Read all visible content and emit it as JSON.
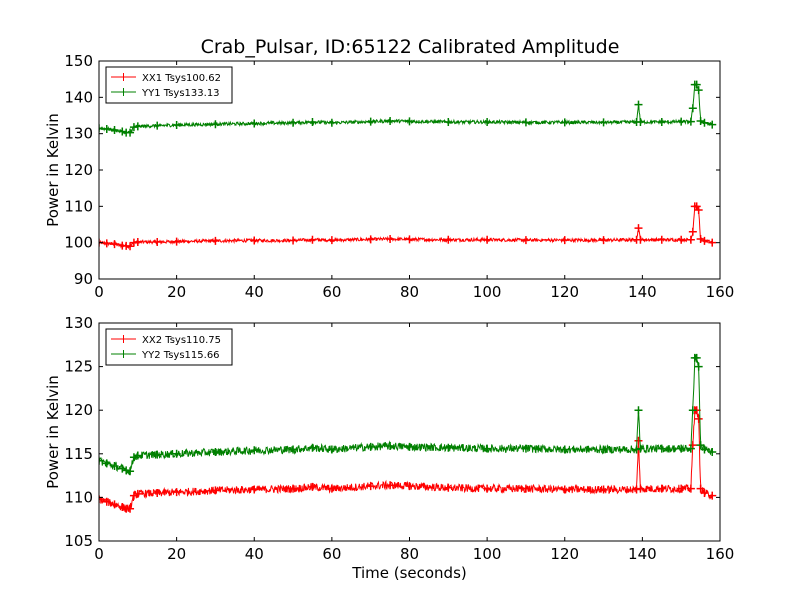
{
  "figure_title": "Crab_Pulsar, ID:65122 Calibrated Amplitude",
  "chart_data": [
    {
      "type": "line",
      "title": "Crab_Pulsar, ID:65122 Calibrated Amplitude",
      "xlabel": "",
      "ylabel": "Power in Kelvin",
      "xlim": [
        0,
        160
      ],
      "ylim": [
        90,
        150
      ],
      "xticks": [
        0,
        20,
        40,
        60,
        80,
        100,
        120,
        140,
        160
      ],
      "yticks": [
        90,
        100,
        110,
        120,
        130,
        140,
        150
      ],
      "grid": false,
      "legend_position": "top-left",
      "marker": "plus",
      "series": [
        {
          "name": "XX1 Tsys100.62",
          "color": "#ff0000",
          "x": [
            0,
            2,
            4,
            6,
            7,
            8,
            9,
            10,
            15,
            20,
            30,
            40,
            50,
            55,
            60,
            70,
            75,
            80,
            90,
            100,
            110,
            120,
            130,
            138.5,
            139,
            139.5,
            145,
            150,
            152.5,
            153,
            153.5,
            154,
            154.5,
            155,
            156,
            158
          ],
          "y": [
            100,
            99.8,
            99.6,
            99.2,
            99.1,
            99,
            100,
            100.2,
            100.2,
            100.3,
            100.5,
            100.6,
            100.6,
            100.8,
            100.7,
            100.9,
            101,
            100.9,
            100.8,
            100.8,
            100.7,
            100.7,
            100.7,
            100.8,
            104,
            100.8,
            100.8,
            100.8,
            100.8,
            103,
            110,
            110,
            109,
            101,
            100.5,
            100
          ]
        },
        {
          "name": "YY1 Tsys133.13",
          "color": "#008000",
          "x": [
            0,
            2,
            4,
            6,
            7,
            8,
            9,
            10,
            15,
            20,
            30,
            40,
            50,
            55,
            60,
            70,
            75,
            80,
            90,
            100,
            110,
            120,
            130,
            138.5,
            139,
            139.5,
            145,
            150,
            152.5,
            153,
            153.5,
            154,
            154.5,
            155,
            156,
            158
          ],
          "y": [
            131.5,
            131.3,
            131,
            130.6,
            130.3,
            130.3,
            131.8,
            132,
            132.2,
            132.4,
            132.6,
            132.8,
            133,
            133.2,
            133,
            133.3,
            133.5,
            133.4,
            133.2,
            133.2,
            133.1,
            133.1,
            133.1,
            133.2,
            138,
            133.2,
            133.2,
            133.3,
            133.3,
            137,
            143.5,
            143.5,
            142,
            133.5,
            133,
            132.5
          ]
        }
      ]
    },
    {
      "type": "line",
      "title": "",
      "xlabel": "Time (seconds)",
      "ylabel": "Power in Kelvin",
      "xlim": [
        0,
        160
      ],
      "ylim": [
        105,
        130
      ],
      "xticks": [
        0,
        20,
        40,
        60,
        80,
        100,
        120,
        140,
        160
      ],
      "yticks": [
        105,
        110,
        115,
        120,
        125,
        130
      ],
      "grid": false,
      "legend_position": "top-left",
      "marker": "plus",
      "series": [
        {
          "name": "XX2 Tsys110.75",
          "color": "#ff0000",
          "x": [
            0,
            2,
            4,
            6,
            7,
            8,
            9,
            10,
            15,
            20,
            30,
            40,
            50,
            55,
            60,
            70,
            75,
            80,
            90,
            100,
            110,
            120,
            130,
            138.5,
            139,
            139.5,
            145,
            150,
            152.5,
            153,
            153.5,
            154,
            154.5,
            155,
            156,
            158
          ],
          "y": [
            109.8,
            109.5,
            109.2,
            108.9,
            108.7,
            108.7,
            110.2,
            110.4,
            110.5,
            110.6,
            110.8,
            110.9,
            111,
            111.2,
            111,
            111.3,
            111.4,
            111.3,
            111.1,
            111,
            111,
            110.9,
            110.9,
            110.9,
            116.5,
            111,
            111,
            111,
            111,
            116,
            120,
            120,
            119,
            111,
            110.5,
            110.2
          ]
        },
        {
          "name": "YY2 Tsys115.66",
          "color": "#008000",
          "x": [
            0,
            2,
            4,
            6,
            7,
            8,
            9,
            10,
            15,
            20,
            30,
            40,
            50,
            55,
            60,
            70,
            75,
            80,
            90,
            100,
            110,
            120,
            130,
            138.5,
            139,
            139.5,
            145,
            150,
            152.5,
            153,
            153.5,
            154,
            154.5,
            155,
            156,
            158
          ],
          "y": [
            114.2,
            113.9,
            113.6,
            113.3,
            113.1,
            113,
            114.6,
            114.8,
            114.9,
            115,
            115.2,
            115.4,
            115.5,
            115.7,
            115.5,
            115.8,
            115.9,
            115.8,
            115.7,
            115.6,
            115.6,
            115.5,
            115.5,
            115.5,
            120,
            115.6,
            115.6,
            115.6,
            115.6,
            120,
            126,
            126,
            125,
            116,
            115.5,
            115.2
          ]
        }
      ]
    }
  ]
}
